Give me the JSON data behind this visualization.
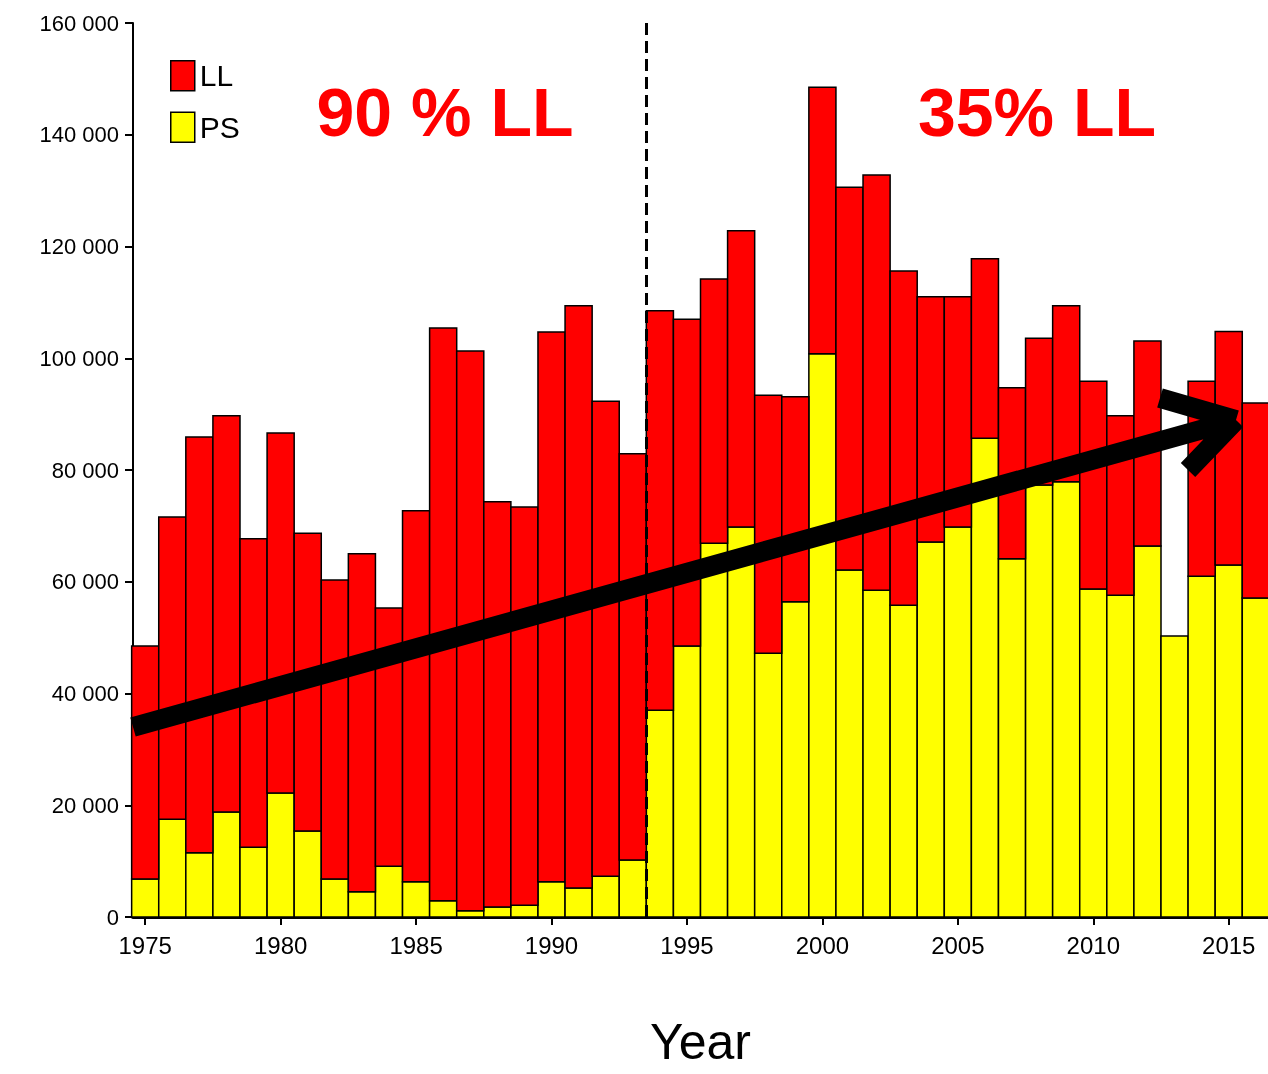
{
  "chart_data": {
    "type": "bar",
    "stacked": true,
    "xlabel": "Year",
    "x": [
      1975,
      1976,
      1977,
      1978,
      1979,
      1980,
      1981,
      1982,
      1983,
      1984,
      1985,
      1986,
      1987,
      1988,
      1989,
      1990,
      1991,
      1992,
      1993,
      1994,
      1995,
      1996,
      1997,
      1998,
      1999,
      2000,
      2001,
      2002,
      2003,
      2004,
      2005,
      2006,
      2007,
      2008,
      2009,
      2010,
      2011,
      2012,
      2013,
      2014,
      2015,
      2016
    ],
    "series": [
      {
        "name": "PS",
        "color": "#ffff00",
        "values": [
          6800,
          17500,
          11500,
          18800,
          12500,
          22200,
          15400,
          6800,
          4500,
          9100,
          6300,
          2900,
          1100,
          1800,
          2100,
          6300,
          5200,
          7300,
          10200,
          37000,
          48500,
          66900,
          69800,
          47200,
          56400,
          100800,
          62100,
          58500,
          55800,
          67100,
          69800,
          85700,
          64100,
          77300,
          77900,
          58700,
          57600,
          66400,
          50300,
          61000,
          63000,
          57100
        ]
      },
      {
        "name": "LL",
        "color": "#ff0000",
        "values": [
          41700,
          54100,
          74400,
          70900,
          55200,
          64400,
          53300,
          53500,
          60500,
          46200,
          66400,
          102500,
          100200,
          72500,
          71300,
          98400,
          104200,
          85000,
          72700,
          71500,
          58500,
          47300,
          53000,
          46200,
          36700,
          47700,
          68500,
          74300,
          59800,
          43900,
          41200,
          32100,
          30600,
          26300,
          31500,
          37200,
          32100,
          36700,
          null,
          34900,
          41800,
          34900
        ]
      }
    ],
    "xlim": [
      1974.55,
      2016.45
    ],
    "xticks": [
      1975,
      1980,
      1985,
      1990,
      1995,
      2000,
      2005,
      2010,
      2015
    ],
    "ylim": [
      0,
      160000
    ],
    "yticks": [
      0,
      {
        "value": 20000,
        "label": "20 000"
      },
      {
        "value": 40000,
        "label": "40 000"
      },
      {
        "value": 60000,
        "label": "60 000"
      },
      {
        "value": 80000,
        "label": "80 000"
      },
      {
        "value": 100000,
        "label": "100 000"
      },
      {
        "value": 120000,
        "label": "120 000"
      },
      {
        "value": 140000,
        "label": "140 000"
      },
      {
        "value": 160000,
        "label": "160 000"
      }
    ],
    "ref_lines": [
      {
        "axis": "x",
        "value": 1993.5,
        "label": null,
        "color": "#000000",
        "line_style": "dashed"
      }
    ],
    "annotations": [
      "90 % LL",
      "35% LL"
    ],
    "legend": "top left",
    "grid": false
  }
}
